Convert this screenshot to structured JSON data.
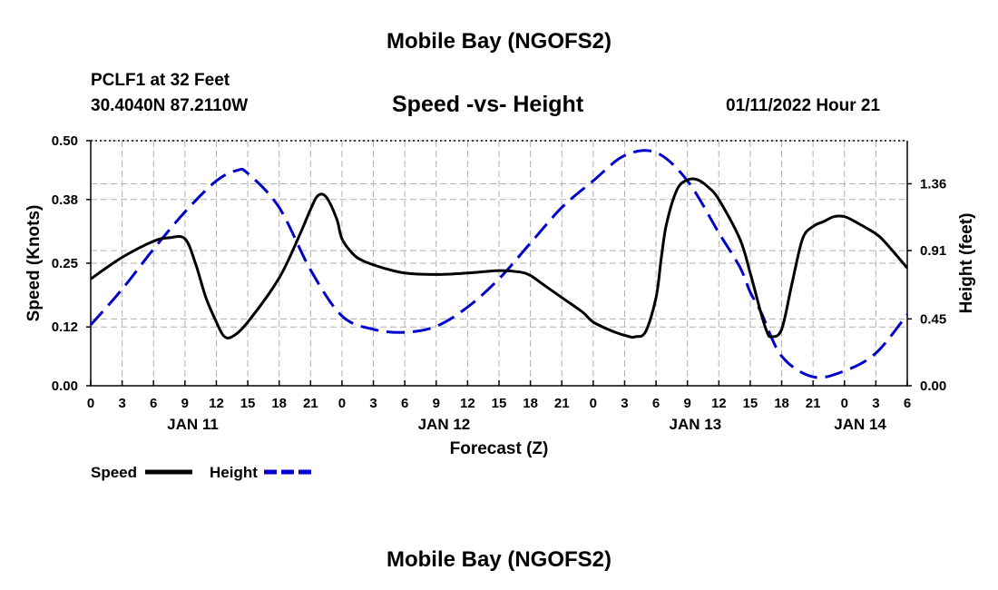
{
  "page": {
    "title_top": "Mobile Bay (NGOFS2)",
    "title_bottom": "Mobile Bay (NGOFS2)",
    "station": "PCLF1 at 32 Feet",
    "coords": "30.4040N  87.2110W",
    "datetime": "01/11/2022 Hour 21"
  },
  "chart_data": {
    "type": "line",
    "title": "Speed -vs- Height",
    "xlabel": "Forecast (Z)",
    "ylabel": "Speed (Knots)",
    "y2label": "Height (feet)",
    "x_unit": "hours since 2022-01-11 00Z",
    "xlim": [
      0,
      78
    ],
    "ylim": [
      0.0,
      0.5
    ],
    "y2lim": [
      0.0,
      1.65
    ],
    "y_ticks": [
      0.0,
      0.12,
      0.25,
      0.38,
      0.5
    ],
    "y_tick_labels": [
      "0.00",
      "0.12",
      "0.25",
      "0.38",
      "0.50"
    ],
    "y2_ticks": [
      0.0,
      0.45,
      0.91,
      1.36
    ],
    "y2_tick_labels": [
      "0.00",
      "0.45",
      "0.91",
      "1.36"
    ],
    "x_ticks": [
      0,
      3,
      6,
      9,
      12,
      15,
      18,
      21,
      24,
      27,
      30,
      33,
      36,
      39,
      42,
      45,
      48,
      51,
      54,
      57,
      60,
      63,
      66,
      69,
      72,
      75,
      78
    ],
    "x_tick_labels": [
      "0",
      "3",
      "6",
      "9",
      "12",
      "15",
      "18",
      "21",
      "0",
      "3",
      "6",
      "9",
      "12",
      "15",
      "18",
      "21",
      "0",
      "3",
      "6",
      "9",
      "12",
      "15",
      "18",
      "21",
      "0",
      "3",
      "6"
    ],
    "date_labels": [
      {
        "x": 9.75,
        "label": "JAN 11"
      },
      {
        "x": 33.75,
        "label": "JAN 12"
      },
      {
        "x": 57.75,
        "label": "JAN 13"
      },
      {
        "x": 73.5,
        "label": "JAN 14"
      }
    ],
    "grid": true,
    "series": [
      {
        "name": "Speed",
        "axis": "left",
        "color": "#000000",
        "style": "solid",
        "x": [
          0,
          3,
          6,
          7.5,
          9,
          10,
          11,
          12,
          12.7,
          13.5,
          15,
          18,
          20,
          21,
          21.7,
          22.5,
          23.5,
          24,
          25,
          26,
          28,
          30,
          33,
          36,
          39,
          41,
          42,
          43,
          45,
          47,
          48,
          50,
          51.5,
          52,
          53,
          54,
          54.5,
          55,
          56,
          57,
          58,
          59,
          60,
          62,
          63,
          64,
          64.6,
          65,
          66,
          67,
          68,
          69,
          70,
          71,
          72,
          73,
          75,
          76,
          78
        ],
        "values": [
          0.218,
          0.262,
          0.295,
          0.302,
          0.3,
          0.25,
          0.18,
          0.13,
          0.102,
          0.1,
          0.13,
          0.22,
          0.31,
          0.36,
          0.388,
          0.385,
          0.34,
          0.3,
          0.27,
          0.255,
          0.24,
          0.23,
          0.227,
          0.23,
          0.235,
          0.232,
          0.225,
          0.21,
          0.18,
          0.15,
          0.13,
          0.11,
          0.1,
          0.1,
          0.11,
          0.18,
          0.26,
          0.33,
          0.4,
          0.42,
          0.42,
          0.405,
          0.38,
          0.3,
          0.23,
          0.15,
          0.11,
          0.1,
          0.115,
          0.21,
          0.3,
          0.325,
          0.335,
          0.345,
          0.345,
          0.335,
          0.31,
          0.29,
          0.24
        ]
      },
      {
        "name": "Height",
        "axis": "right",
        "color": "#0000cc",
        "style": "dashed",
        "x": [
          0,
          3,
          6,
          9,
          12,
          14,
          15,
          18,
          21,
          24,
          27,
          30,
          33,
          36,
          39,
          42,
          45,
          48,
          51,
          54,
          57,
          60,
          62,
          63,
          64,
          66,
          69,
          72,
          75,
          78
        ],
        "values": [
          0.41,
          0.65,
          0.92,
          1.17,
          1.38,
          1.45,
          1.43,
          1.2,
          0.78,
          0.47,
          0.38,
          0.36,
          0.4,
          0.53,
          0.72,
          0.96,
          1.2,
          1.38,
          1.55,
          1.57,
          1.38,
          1.03,
          0.8,
          0.63,
          0.5,
          0.2,
          0.06,
          0.1,
          0.22,
          0.48
        ]
      }
    ],
    "legend": [
      {
        "label": "Speed",
        "color": "#000000",
        "style": "solid"
      },
      {
        "label": "Height",
        "color": "#0000cc",
        "style": "dashed"
      }
    ]
  }
}
